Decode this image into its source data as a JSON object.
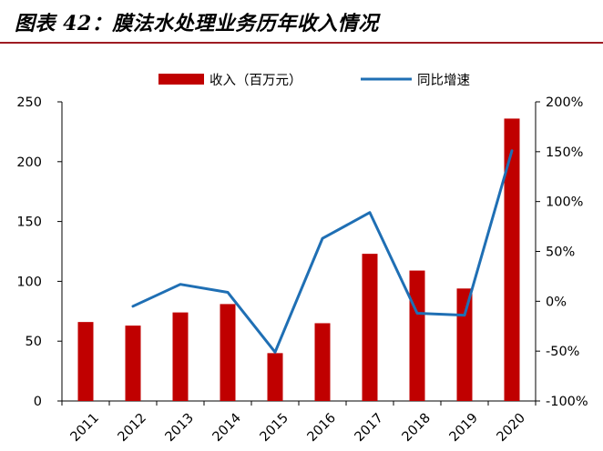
{
  "figure": {
    "title": "图表 42：膜法水处理业务历年收入情况"
  },
  "chart_data": {
    "type": "bar",
    "categories": [
      "2011",
      "2012",
      "2013",
      "2014",
      "2015",
      "2016",
      "2017",
      "2018",
      "2019",
      "2020"
    ],
    "series": [
      {
        "name": "收入（百万元）",
        "type": "bar",
        "axis": "left",
        "color": "#c00000",
        "values": [
          66,
          63,
          74,
          81,
          40,
          65,
          123,
          109,
          94,
          236
        ]
      },
      {
        "name": "同比增速",
        "type": "line",
        "axis": "right",
        "color": "#1f6fb4",
        "values": [
          null,
          -0.05,
          0.17,
          0.09,
          -0.51,
          0.63,
          0.89,
          -0.12,
          -0.14,
          1.51
        ]
      }
    ],
    "ylim": [
      0,
      250
    ],
    "yticks": [
      "0",
      "50",
      "100",
      "150",
      "200",
      "250"
    ],
    "y2lim": [
      -1.0,
      2.0
    ],
    "y2ticks": [
      "-100%",
      "-50%",
      "0%",
      "50%",
      "100%",
      "150%",
      "200%"
    ],
    "legend_position": "top",
    "grid": false
  }
}
